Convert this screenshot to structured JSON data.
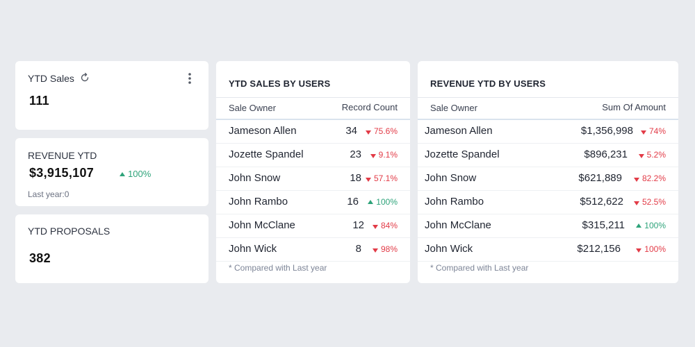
{
  "ytd_sales": {
    "title": "YTD Sales",
    "value": "111"
  },
  "revenue_ytd": {
    "title": "REVENUE YTD",
    "value": "$3,915,107",
    "change": "100%",
    "last_year": "Last year:0"
  },
  "ytd_proposals": {
    "title": "YTD PROPOSALS",
    "value": "382"
  },
  "sales_by_users": {
    "title": "YTD SALES BY USERS",
    "col_owner": "Sale Owner",
    "col_value": "Record Count",
    "footnote": "* Compared with Last year",
    "rows": [
      {
        "owner": "Jameson Allen",
        "value": "34",
        "change": "75.6%",
        "trend": "down"
      },
      {
        "owner": "Jozette Spandel",
        "value": "23",
        "change": "9.1%",
        "trend": "down"
      },
      {
        "owner": "John Snow",
        "value": "18",
        "change": "57.1%",
        "trend": "down"
      },
      {
        "owner": "John Rambo",
        "value": "16",
        "change": "100%",
        "trend": "up"
      },
      {
        "owner": "John McClane",
        "value": "12",
        "change": "84%",
        "trend": "down"
      },
      {
        "owner": "John Wick",
        "value": "8",
        "change": "98%",
        "trend": "down"
      }
    ]
  },
  "revenue_by_users": {
    "title": "REVENUE YTD BY USERS",
    "col_owner": "Sale Owner",
    "col_value": "Sum Of Amount",
    "footnote": "* Compared with Last year",
    "rows": [
      {
        "owner": "Jameson Allen",
        "value": "$1,356,998",
        "change": "74%",
        "trend": "down"
      },
      {
        "owner": "Jozette Spandel",
        "value": "$896,231",
        "change": "5.2%",
        "trend": "down"
      },
      {
        "owner": "John Snow",
        "value": "$621,889",
        "change": "82.2%",
        "trend": "down"
      },
      {
        "owner": "John Rambo",
        "value": "$512,622",
        "change": "52.5%",
        "trend": "down"
      },
      {
        "owner": "John McClane",
        "value": "$315,211",
        "change": "100%",
        "trend": "up"
      },
      {
        "owner": "John Wick",
        "value": "$212,156",
        "change": "100%",
        "trend": "down"
      }
    ]
  },
  "colors": {
    "background": "#e9ebef",
    "card": "#ffffff",
    "positive": "#2ea37a",
    "negative": "#e23b47"
  },
  "icons": {
    "refresh": "refresh-icon",
    "more": "kebab-menu-icon",
    "up": "triangle-up-icon",
    "down": "triangle-down-icon"
  }
}
